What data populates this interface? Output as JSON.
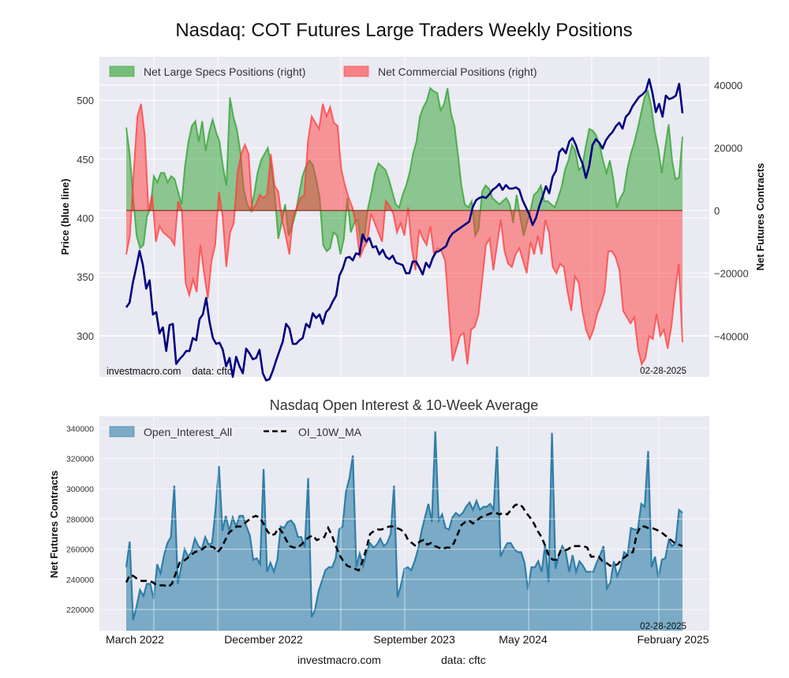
{
  "page": {
    "title": "Nasdaq: COT Futures Large Traders Weekly Positions",
    "footer_site": "investmacro.com",
    "footer_data": "data: cftc"
  },
  "colors": {
    "plot_bg": "#eaeaf2",
    "specs": "#2ca02c",
    "commercial": "#ff3b3b",
    "price": "#000080",
    "oi": "#2f7ea8",
    "ma": "#000000"
  },
  "chart_data": [
    {
      "type": "area",
      "title": "Nasdaq: COT Futures Large Traders Weekly Positions",
      "ylabel_left": "Price (blue line)",
      "ylabel_right": "Net Futures Contracts",
      "yticks_left": [
        300,
        350,
        400,
        450,
        500
      ],
      "ylim_left": [
        265,
        537
      ],
      "yticks_right": [
        -40000,
        -20000,
        0,
        20000,
        40000
      ],
      "yticks_right_labels": [
        "−40000",
        "−20000",
        "0",
        "20000",
        "40000"
      ],
      "ylim_right": [
        -53000,
        49000
      ],
      "legend": [
        "Net Large Specs Positions (right)",
        "Net Commercial Positions (right)"
      ],
      "legend_placement": "top-left",
      "watermark_left": "investmacro.com    data: cftc",
      "date_label": "02-28-2025",
      "grid": true,
      "series": [
        {
          "name": "Net Large Specs Positions (right)",
          "axis": "right",
          "values": [
            26500,
            18000,
            4000,
            -8000,
            -12000,
            -11000,
            -2000,
            1000,
            11000,
            9000,
            12000,
            12000,
            9000,
            11000,
            10000,
            6000,
            2000,
            14000,
            22000,
            27000,
            28500,
            22000,
            28500,
            19000,
            25000,
            29000,
            25000,
            22000,
            14000,
            8000,
            36000,
            30000,
            26000,
            19000,
            7000,
            2000,
            0,
            5000,
            12000,
            16000,
            18000,
            20000,
            14000,
            5000,
            -9000,
            -4000,
            2000,
            -8000,
            -5000,
            -1000,
            5000,
            11000,
            14000,
            16000,
            14500,
            10000,
            4000,
            -11000,
            -13000,
            -12000,
            -7000,
            -8000,
            -14000,
            -9000,
            4000,
            -7000,
            -4000,
            -3000,
            -11000,
            -8000,
            1000,
            6000,
            12000,
            15000,
            14000,
            13000,
            10000,
            6000,
            2000,
            1000,
            5000,
            8000,
            12000,
            18000,
            22000,
            30000,
            33000,
            35000,
            39000,
            38000,
            37500,
            32000,
            34000,
            39000,
            31000,
            27000,
            18000,
            8000,
            2000,
            1000,
            3000,
            -8000,
            -6000,
            6000,
            8000,
            7000,
            4000,
            3000,
            2000,
            3000,
            4000,
            2000,
            -4000,
            5000,
            -2000,
            -8000,
            -4000,
            0,
            5000,
            6000,
            8000,
            3000,
            3000,
            2000,
            1000,
            4000,
            7500,
            13000,
            16000,
            21000,
            19000,
            13000,
            14000,
            20500,
            26000,
            25500,
            24000,
            21000,
            16000,
            12000,
            16000,
            10000,
            1000,
            4000,
            6000,
            13000,
            18000,
            21500,
            26000,
            31000,
            36000,
            38000,
            33000,
            25000,
            20000,
            12000,
            20000,
            27500,
            16000,
            10000,
            10500,
            23500
          ]
        },
        {
          "name": "Net Commercial Positions (right)",
          "axis": "right",
          "values": [
            -14000,
            -8000,
            12000,
            30000,
            34000,
            24000,
            0,
            5000,
            -10000,
            -5000,
            -7000,
            -8000,
            -9000,
            -11000,
            3000,
            0,
            -23000,
            -27000,
            -22000,
            -26000,
            -11000,
            -20000,
            -28000,
            -16000,
            -11000,
            6000,
            -2000,
            -18000,
            -7000,
            -4000,
            12000,
            18000,
            21000,
            18000,
            0,
            2000,
            5000,
            4000,
            5000,
            18000,
            8000,
            6000,
            -3000,
            -8000,
            -14000,
            -2000,
            1000,
            4000,
            5000,
            22000,
            30000,
            28000,
            26000,
            34000,
            30000,
            33000,
            28000,
            27000,
            13000,
            8000,
            4000,
            1000,
            -5000,
            -15000,
            -12000,
            -10000,
            -1000,
            -4000,
            -7000,
            -10000,
            3000,
            1500,
            -1000,
            -7000,
            -4000,
            -8000,
            1000,
            -12000,
            -19000,
            -6000,
            -9000,
            -11000,
            -5000,
            -14000,
            -12000,
            -13000,
            -16000,
            -32000,
            -48000,
            -44000,
            -40000,
            -39000,
            -49000,
            -38000,
            -37000,
            -33000,
            -22000,
            -11000,
            -9000,
            -19000,
            -11000,
            -3000,
            -13000,
            -17000,
            -18000,
            -14000,
            -12000,
            -16000,
            -20000,
            -10000,
            -14000,
            -8000,
            -14000,
            -3000,
            -7000,
            -18000,
            -20000,
            -17000,
            -18000,
            -26000,
            -32000,
            -21000,
            -23000,
            -32000,
            -38000,
            -41000,
            -38000,
            -33000,
            -30000,
            -26000,
            -13000,
            -13000,
            -15000,
            -19000,
            -32000,
            -34000,
            -36000,
            -34000,
            -44000,
            -49000,
            -47000,
            -40000,
            -41000,
            -33000,
            -40000,
            -38000,
            -44000,
            -37000,
            -26000,
            -17000,
            -42000
          ]
        },
        {
          "name": "Price (blue line)",
          "axis": "left",
          "values": [
            324,
            328,
            345,
            358,
            372,
            360,
            340,
            347,
            318,
            320,
            302,
            307,
            287,
            309,
            310,
            276,
            280,
            283,
            287,
            287,
            298,
            296,
            314,
            318,
            332,
            312,
            298,
            293,
            294,
            288,
            274,
            281,
            265,
            282,
            274,
            268,
            289,
            285,
            280,
            281,
            288,
            268,
            262,
            263,
            270,
            279,
            287,
            295,
            310,
            306,
            293,
            293,
            296,
            298,
            310,
            307,
            319,
            315,
            318,
            310,
            320,
            323,
            329,
            334,
            351,
            357,
            366,
            367,
            364,
            370,
            369,
            386,
            380,
            383,
            375,
            376,
            369,
            373,
            367,
            365,
            368,
            362,
            361,
            360,
            353,
            353,
            363,
            363,
            358,
            352,
            362,
            358,
            366,
            371,
            372,
            374,
            376,
            383,
            387,
            389,
            391,
            393,
            395,
            397,
            409,
            415,
            417,
            418,
            417,
            420,
            424,
            426,
            429,
            424,
            428,
            425,
            425,
            426,
            424,
            415,
            409,
            403,
            394,
            400,
            410,
            418,
            427,
            421,
            435,
            440,
            456,
            459,
            455,
            465,
            468,
            462,
            453,
            446,
            434,
            444,
            462,
            467,
            464,
            459,
            466,
            470,
            473,
            478,
            481,
            476,
            486,
            489,
            495,
            499,
            503,
            505,
            508,
            518,
            506,
            490,
            497,
            486,
            504,
            501,
            502,
            504,
            514,
            489
          ]
        }
      ]
    },
    {
      "type": "area",
      "title": "Nasdaq Open Interest & 10-Week Average",
      "xlabel": "",
      "ylabel": "Net Futures Contracts",
      "xticks": [
        "March 2022",
        "December 2022",
        "September 2023",
        "May 2024",
        "February 2025"
      ],
      "yticks": [
        220000,
        240000,
        260000,
        280000,
        300000,
        320000,
        340000
      ],
      "ylim": [
        206000,
        348000
      ],
      "legend": [
        "Open_Interest_All",
        "OI_10W_MA"
      ],
      "legend_placement": "top-left",
      "date_label": "02-28-2025",
      "grid": true,
      "series": [
        {
          "name": "Open_Interest_All",
          "values": [
            248000,
            265000,
            213000,
            222000,
            233000,
            229000,
            237000,
            237000,
            227000,
            250000,
            244000,
            256000,
            264000,
            268000,
            302000,
            237000,
            248000,
            260000,
            255000,
            258000,
            267000,
            262000,
            260000,
            268000,
            263000,
            264000,
            286000,
            315000,
            272000,
            282000,
            272000,
            281000,
            275000,
            282000,
            282000,
            275000,
            269000,
            253000,
            254000,
            250000,
            313000,
            245000,
            251000,
            245000,
            253000,
            275000,
            274000,
            278000,
            279000,
            276000,
            268000,
            268000,
            261000,
            307000,
            215000,
            220000,
            232000,
            239000,
            246000,
            248000,
            248000,
            254000,
            273000,
            275000,
            298000,
            307000,
            322000,
            248000,
            257000,
            249000,
            258000,
            264000,
            261000,
            263000,
            267000,
            262000,
            264000,
            270000,
            302000,
            228000,
            236000,
            247000,
            248000,
            246000,
            252000,
            260000,
            272000,
            281000,
            290000,
            278000,
            338000,
            279000,
            283000,
            274000,
            273000,
            281000,
            284000,
            282000,
            284000,
            288000,
            291000,
            286000,
            292000,
            286000,
            288000,
            288000,
            290000,
            286000,
            328000,
            255000,
            260000,
            264000,
            264000,
            260000,
            258000,
            258000,
            251000,
            233000,
            248000,
            248000,
            252000,
            245000,
            263000,
            238000,
            337000,
            247000,
            256000,
            262000,
            258000,
            245000,
            256000,
            245000,
            252000,
            249000,
            245000,
            245000,
            245000,
            251000,
            256000,
            262000,
            234000,
            238000,
            252000,
            242000,
            248000,
            258000,
            256000,
            274000,
            273000,
            273000,
            290000,
            288000,
            325000,
            248000,
            255000,
            241000,
            253000,
            254000,
            266000,
            262000,
            264000,
            286000,
            284000
          ]
        },
        {
          "name": "OI_10W_MA",
          "values": [
            238000,
            243000,
            242000,
            240000,
            239000,
            239000,
            239000,
            238000,
            236000,
            236000,
            236000,
            235000,
            237000,
            244000,
            251000,
            252000,
            254000,
            256000,
            258000,
            259000,
            260000,
            262000,
            262000,
            261000,
            258000,
            261000,
            266000,
            271000,
            273000,
            275000,
            275000,
            277000,
            279000,
            281000,
            282000,
            281000,
            277000,
            272000,
            269000,
            270000,
            274000,
            271000,
            266000,
            262000,
            261000,
            261000,
            263000,
            266000,
            268000,
            269000,
            266000,
            267000,
            268000,
            274000,
            269000,
            262000,
            256000,
            252000,
            249000,
            248000,
            247000,
            246000,
            252000,
            260000,
            270000,
            272000,
            273000,
            273000,
            274000,
            275000,
            275000,
            274000,
            273000,
            271000,
            266000,
            264000,
            262000,
            265000,
            266000,
            263000,
            264000,
            262000,
            261000,
            260000,
            261000,
            261000,
            264000,
            270000,
            276000,
            278000,
            279000,
            277000,
            279000,
            281000,
            282000,
            283000,
            284000,
            284000,
            283000,
            284000,
            283000,
            286000,
            289000,
            290000,
            288000,
            284000,
            281000,
            277000,
            272000,
            268000,
            262000,
            255000,
            253000,
            253000,
            259000,
            259000,
            260000,
            262000,
            262000,
            262000,
            262000,
            261000,
            255000,
            255000,
            255000,
            252000,
            251000,
            249000,
            249000,
            250000,
            253000,
            255000,
            257000,
            258000,
            270000,
            275000,
            275000,
            274000,
            274000,
            273000,
            272000,
            270000,
            268000,
            266000,
            264000,
            263000,
            262000
          ]
        }
      ]
    }
  ]
}
